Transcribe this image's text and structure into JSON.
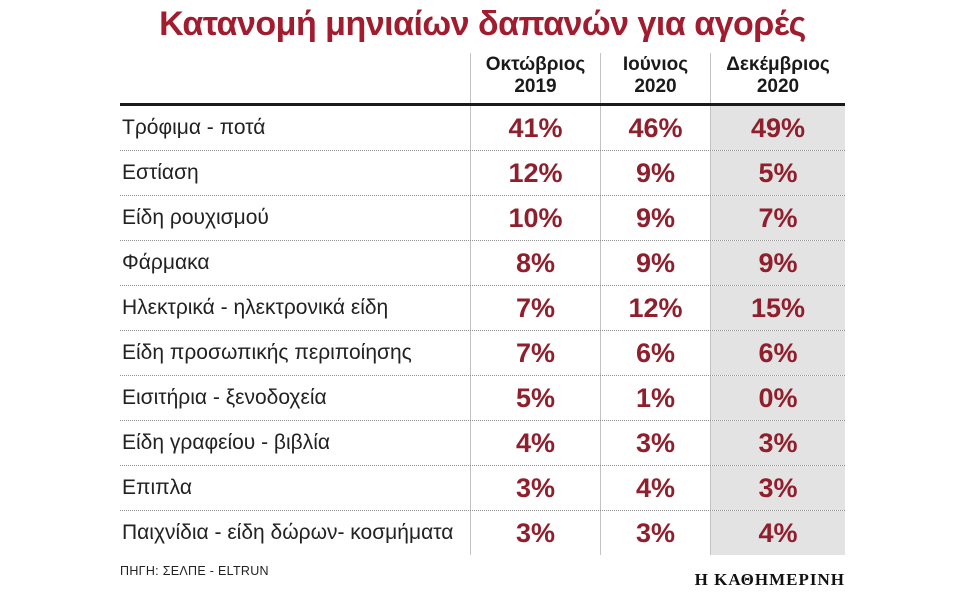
{
  "title": "Κατανομή μηνιαίων δαπανών για αγορές",
  "source": "ΠΗΓΗ: ΣΕΛΠΕ - ELTRUN",
  "brand": "Η ΚΑΘΗΜΕΡΙΝΗ",
  "colors": {
    "accent_red_title": "#a11c2e",
    "accent_red_values": "#8f1f2c",
    "highlight_column_bg": "#e3e3e3",
    "header_rule": "#1a1a1a",
    "dotted_rule": "#8f8f8f"
  },
  "chart_data": {
    "type": "table",
    "title": "Κατανομή μηνιαίων δαπανών για αγορές",
    "columns": [
      "Οκτώβριος 2019",
      "Ιούνιος 2020",
      "Δεκέμβριος 2020"
    ],
    "highlighted_column": "Δεκέμβριος 2020",
    "rows": [
      {
        "label": "Τρόφιμα - ποτά",
        "values": [
          "41%",
          "46%",
          "49%"
        ]
      },
      {
        "label": "Εστίαση",
        "values": [
          "12%",
          "9%",
          "5%"
        ]
      },
      {
        "label": "Είδη ρουχισμού",
        "values": [
          "10%",
          "9%",
          "7%"
        ]
      },
      {
        "label": "Φάρμακα",
        "values": [
          "8%",
          "9%",
          "9%"
        ]
      },
      {
        "label": "Ηλεκτρικά - ηλεκτρονικά είδη",
        "values": [
          "7%",
          "12%",
          "15%"
        ]
      },
      {
        "label": "Είδη προσωπικής περιποίησης",
        "values": [
          "7%",
          "6%",
          "6%"
        ]
      },
      {
        "label": "Εισιτήρια - ξενοδοχεία",
        "values": [
          "5%",
          "1%",
          "0%"
        ]
      },
      {
        "label": "Είδη γραφείου - βιβλία",
        "values": [
          "4%",
          "3%",
          "3%"
        ]
      },
      {
        "label": "Επιπλα",
        "values": [
          "3%",
          "4%",
          "3%"
        ]
      },
      {
        "label": "Παιχνίδια - είδη δώρων- κοσμήματα",
        "values": [
          "3%",
          "3%",
          "4%"
        ]
      }
    ]
  }
}
